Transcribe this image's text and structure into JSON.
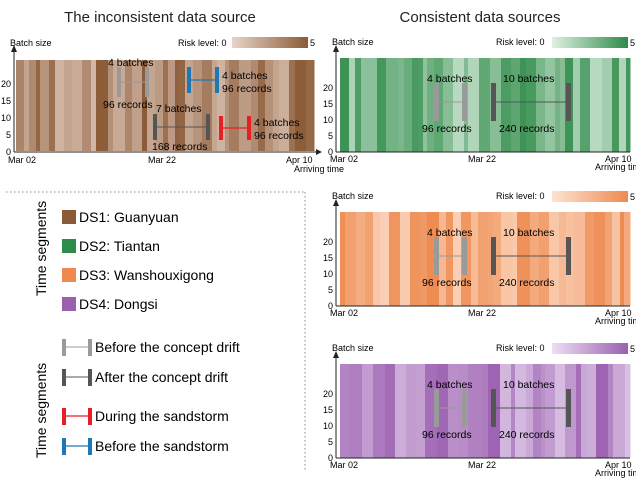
{
  "titles": {
    "left": "The inconsistent data source",
    "right": "Consistent data sources"
  },
  "common": {
    "batch_size_label": "Batch size",
    "risk_label": "Risk level: 0",
    "risk_max": "5",
    "x_start": "Mar 02",
    "x_mid": "Mar 22",
    "x_end": "Apr 10",
    "x_axis_label": "Arriving time",
    "y_ticks": [
      "0",
      "5",
      "10",
      "15",
      "20"
    ]
  },
  "colors": {
    "ds1": "#8b5a36",
    "ds2": "#2e8b49",
    "ds3": "#ee8a4f",
    "ds4": "#9b5fb0",
    "before_drift": "#9a9a9a",
    "after_drift": "#555555",
    "during_sandstorm": "#e81e25",
    "before_sandstorm": "#1f77b4"
  },
  "left_panel": {
    "annotations": [
      {
        "top": "4 batches",
        "bottom": "96 records"
      },
      {
        "top": "4 batches",
        "bottom": "96 records"
      },
      {
        "top": "7 batches",
        "bottom": "168 records"
      },
      {
        "top": "4 batches",
        "bottom": "96 records"
      }
    ]
  },
  "right_panel_annotations": {
    "left_top": "4 batches",
    "left_bottom": "96 records",
    "right_top": "10 batches",
    "right_bottom": "240 records"
  },
  "legend": {
    "sources_heading": "Time segments",
    "sources": [
      {
        "label": "DS1: Guanyuan",
        "icon": "square-brown"
      },
      {
        "label": "DS2: Tiantan",
        "icon": "square-green"
      },
      {
        "label": "DS3: Wanshouxigong",
        "icon": "square-orange"
      },
      {
        "label": "DS4: Dongsi",
        "icon": "square-purple"
      }
    ],
    "segments_heading": "Time segments",
    "segments": [
      {
        "label": "Before the concept drift",
        "icon": "light-gray-bracket"
      },
      {
        "label": "After the concept drift",
        "icon": "dark-gray-bracket"
      },
      {
        "label": "During the sandstorm",
        "icon": "red-bracket"
      },
      {
        "label": "Before the sandstorm",
        "icon": "blue-bracket"
      }
    ]
  }
}
